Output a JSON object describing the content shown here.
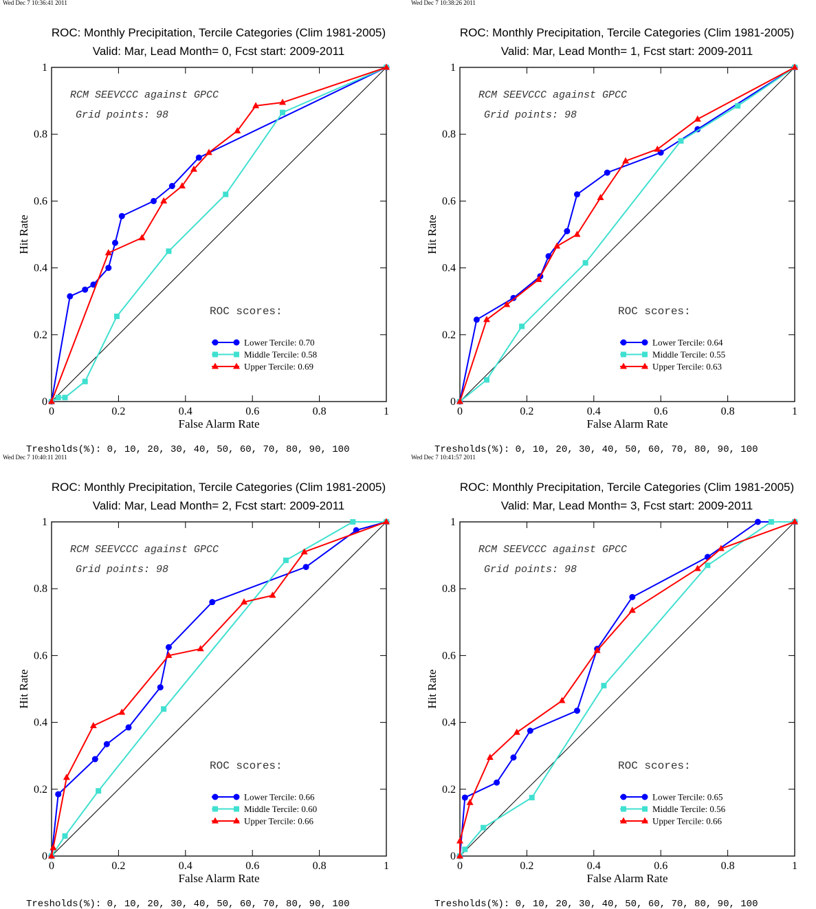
{
  "chart_data": [
    {
      "type": "line",
      "timestamp": "Wed Dec  7 10:36:41 2011",
      "title": "ROC: Monthly Precipitation, Tercile Categories (Clim 1981-2005)",
      "subtitle": "Valid: Mar, Lead Month= 0, Fcst start: 2009-2011",
      "xlabel": "False Alarm Rate",
      "ylabel": "Hit Rate",
      "xlim": [
        0,
        1
      ],
      "ylim": [
        0,
        1
      ],
      "xticks": [
        "0",
        "0.2",
        "0.4",
        "0.6",
        "0.8",
        "1"
      ],
      "yticks": [
        "0",
        "0.2",
        "0.4",
        "0.6",
        "0.8",
        "1"
      ],
      "annotation_model": "RCM SEEVCCC against GPCC",
      "annotation_grid": "Grid points:   98",
      "scores_label": "ROC scores:",
      "thresholds": "Tresholds(%): 0, 10, 20, 30, 40, 50, 60, 70, 80, 90, 100",
      "legend_position": "lower-right",
      "series": [
        {
          "name": "Lower Tercile: 0.70",
          "color": "#0000ff",
          "marker": "circle",
          "x": [
            0,
            0.055,
            0.1,
            0.125,
            0.17,
            0.19,
            0.21,
            0.305,
            0.36,
            0.44,
            1.0
          ],
          "y": [
            0,
            0.315,
            0.335,
            0.35,
            0.4,
            0.475,
            0.555,
            0.6,
            0.645,
            0.73,
            1.0
          ]
        },
        {
          "name": "Middle Tercile: 0.58",
          "color": "#40e0d0",
          "marker": "square",
          "x": [
            0,
            0.02,
            0.04,
            0.1,
            0.195,
            0.35,
            0.52,
            0.69,
            1.0
          ],
          "y": [
            0,
            0.012,
            0.012,
            0.06,
            0.255,
            0.45,
            0.62,
            0.865,
            1.0
          ]
        },
        {
          "name": "Upper Tercile: 0.69",
          "color": "#ff0000",
          "marker": "triangle",
          "x": [
            0,
            0.17,
            0.27,
            0.335,
            0.39,
            0.425,
            0.47,
            0.555,
            0.61,
            0.69,
            1.0
          ],
          "y": [
            0,
            0.445,
            0.49,
            0.6,
            0.645,
            0.695,
            0.745,
            0.81,
            0.885,
            0.895,
            1.0
          ]
        }
      ]
    },
    {
      "type": "line",
      "timestamp": "Wed Dec  7 10:38:26 2011",
      "title": "ROC: Monthly Precipitation, Tercile Categories (Clim 1981-2005)",
      "subtitle": "Valid: Mar, Lead Month= 1, Fcst start: 2009-2011",
      "xlabel": "False Alarm Rate",
      "ylabel": "Hit Rate",
      "xlim": [
        0,
        1
      ],
      "ylim": [
        0,
        1
      ],
      "xticks": [
        "0",
        "0.2",
        "0.4",
        "0.6",
        "0.8",
        "1"
      ],
      "yticks": [
        "0",
        "0.2",
        "0.4",
        "0.6",
        "0.8",
        "1"
      ],
      "annotation_model": "RCM SEEVCCC against GPCC",
      "annotation_grid": "Grid points:   98",
      "scores_label": "ROC scores:",
      "thresholds": "Tresholds(%): 0, 10, 20, 30, 40, 50, 60, 70, 80, 90, 100",
      "legend_position": "lower-right",
      "series": [
        {
          "name": "Lower Tercile: 0.64",
          "color": "#0000ff",
          "marker": "circle",
          "x": [
            0,
            0.05,
            0.16,
            0.24,
            0.265,
            0.32,
            0.35,
            0.44,
            0.6,
            0.71,
            1.0
          ],
          "y": [
            0,
            0.245,
            0.31,
            0.375,
            0.435,
            0.51,
            0.62,
            0.685,
            0.745,
            0.815,
            1.0
          ]
        },
        {
          "name": "Middle Tercile: 0.55",
          "color": "#40e0d0",
          "marker": "square",
          "x": [
            0,
            0.08,
            0.185,
            0.375,
            0.66,
            0.83,
            1.0
          ],
          "y": [
            0,
            0.065,
            0.225,
            0.415,
            0.78,
            0.885,
            1.0
          ]
        },
        {
          "name": "Upper Tercile: 0.63",
          "color": "#ff0000",
          "marker": "triangle",
          "x": [
            0,
            0.08,
            0.14,
            0.235,
            0.29,
            0.35,
            0.42,
            0.495,
            0.59,
            0.71,
            1.0
          ],
          "y": [
            0,
            0.245,
            0.29,
            0.365,
            0.465,
            0.5,
            0.61,
            0.72,
            0.755,
            0.845,
            1.0
          ]
        }
      ]
    },
    {
      "type": "line",
      "timestamp": "Wed Dec  7 10:40:11 2011",
      "title": "ROC: Monthly Precipitation, Tercile Categories (Clim 1981-2005)",
      "subtitle": "Valid: Mar, Lead Month= 2, Fcst start: 2009-2011",
      "xlabel": "False Alarm Rate",
      "ylabel": "Hit Rate",
      "xlim": [
        0,
        1
      ],
      "ylim": [
        0,
        1
      ],
      "xticks": [
        "0",
        "0.2",
        "0.4",
        "0.6",
        "0.8",
        "1"
      ],
      "yticks": [
        "0",
        "0.2",
        "0.4",
        "0.6",
        "0.8",
        "1"
      ],
      "annotation_model": "RCM SEEVCCC against GPCC",
      "annotation_grid": "Grid points:   98",
      "scores_label": "ROC scores:",
      "thresholds": "Tresholds(%): 0, 10, 20, 30, 40, 50, 60, 70, 80, 90, 100",
      "legend_position": "lower-right",
      "series": [
        {
          "name": "Lower Tercile: 0.66",
          "color": "#0000ff",
          "marker": "circle",
          "x": [
            0,
            0.02,
            0.13,
            0.165,
            0.23,
            0.325,
            0.35,
            0.48,
            0.76,
            0.91,
            1.0
          ],
          "y": [
            0,
            0.185,
            0.29,
            0.335,
            0.385,
            0.505,
            0.625,
            0.76,
            0.865,
            0.975,
            1.0
          ]
        },
        {
          "name": "Middle Tercile: 0.60",
          "color": "#40e0d0",
          "marker": "square",
          "x": [
            0,
            0.04,
            0.14,
            0.335,
            0.7,
            0.9,
            1.0
          ],
          "y": [
            0,
            0.06,
            0.195,
            0.44,
            0.885,
            1.0,
            1.0
          ]
        },
        {
          "name": "Upper Tercile: 0.66",
          "color": "#ff0000",
          "marker": "triangle",
          "x": [
            0,
            0.005,
            0.045,
            0.125,
            0.21,
            0.35,
            0.445,
            0.575,
            0.66,
            0.755,
            1.0
          ],
          "y": [
            0,
            0.025,
            0.235,
            0.39,
            0.43,
            0.6,
            0.62,
            0.76,
            0.78,
            0.91,
            1.0
          ]
        }
      ]
    },
    {
      "type": "line",
      "timestamp": "Wed Dec  7 10:41:57 2011",
      "title": "ROC: Monthly Precipitation, Tercile Categories (Clim 1981-2005)",
      "subtitle": "Valid: Mar, Lead Month= 3, Fcst start: 2009-2011",
      "xlabel": "False Alarm Rate",
      "ylabel": "Hit Rate",
      "xlim": [
        0,
        1
      ],
      "ylim": [
        0,
        1
      ],
      "xticks": [
        "0",
        "0.2",
        "0.4",
        "0.6",
        "0.8",
        "1"
      ],
      "yticks": [
        "0",
        "0.2",
        "0.4",
        "0.6",
        "0.8",
        "1"
      ],
      "annotation_model": "RCM SEEVCCC against GPCC",
      "annotation_grid": "Grid points:   98",
      "scores_label": "ROC scores:",
      "thresholds": "Tresholds(%): 0, 10, 20, 30, 40, 50, 60, 70, 80, 90, 100",
      "legend_position": "lower-right",
      "series": [
        {
          "name": "Lower Tercile: 0.65",
          "color": "#0000ff",
          "marker": "circle",
          "x": [
            0,
            0.015,
            0.11,
            0.16,
            0.21,
            0.35,
            0.41,
            0.515,
            0.74,
            0.89,
            1.0
          ],
          "y": [
            0,
            0.175,
            0.22,
            0.295,
            0.375,
            0.435,
            0.62,
            0.775,
            0.895,
            1.0,
            1.0
          ]
        },
        {
          "name": "Middle Tercile: 0.56",
          "color": "#40e0d0",
          "marker": "square",
          "x": [
            0,
            0.015,
            0.07,
            0.215,
            0.43,
            0.74,
            0.93,
            1.0
          ],
          "y": [
            0,
            0.02,
            0.085,
            0.175,
            0.51,
            0.87,
            1.0,
            1.0
          ]
        },
        {
          "name": "Upper Tercile: 0.66",
          "color": "#ff0000",
          "marker": "triangle",
          "x": [
            0,
            0.0,
            0.03,
            0.09,
            0.17,
            0.305,
            0.41,
            0.515,
            0.71,
            0.78,
            1.0
          ],
          "y": [
            0,
            0.045,
            0.16,
            0.295,
            0.37,
            0.465,
            0.615,
            0.735,
            0.86,
            0.92,
            1.0
          ]
        }
      ]
    }
  ]
}
